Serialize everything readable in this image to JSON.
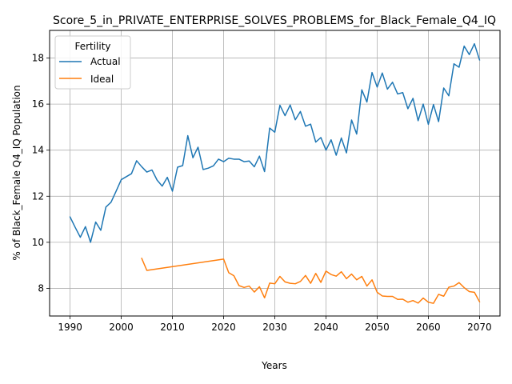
{
  "chart_data": {
    "type": "line",
    "title": "Score_5_in_PRIVATE_ENTERPRISE_SOLVES_PROBLEMS_for_Black_Female_Q4_IQ",
    "xlabel": "Years",
    "ylabel": "% of Black_Female Q4_IQ Population",
    "xlim": [
      1986.0,
      2074.0
    ],
    "ylim": [
      6.8,
      19.2
    ],
    "xticks": [
      1990,
      2000,
      2010,
      2020,
      2030,
      2040,
      2050,
      2060,
      2070
    ],
    "yticks": [
      8,
      10,
      12,
      14,
      16,
      18
    ],
    "grid": true,
    "legend": {
      "title": "Fertility",
      "placement": "top-left"
    },
    "series": [
      {
        "name": "Actual",
        "color": "#1f77b4",
        "x": [
          1990,
          1991,
          1992,
          1993,
          1994,
          1995,
          1996,
          1997,
          1998,
          1999,
          2000,
          2002,
          2003,
          2004,
          2005,
          2006,
          2007,
          2008,
          2009,
          2010,
          2011,
          2012,
          2013,
          2014,
          2015,
          2016,
          2017,
          2018,
          2019,
          2020,
          2021,
          2022,
          2023,
          2024,
          2025,
          2026,
          2027,
          2028,
          2029,
          2030,
          2031,
          2032,
          2033,
          2034,
          2035,
          2036,
          2037,
          2038,
          2039,
          2040,
          2041,
          2042,
          2043,
          2044,
          2045,
          2046,
          2047,
          2048,
          2049,
          2050,
          2051,
          2052,
          2053,
          2054,
          2055,
          2056,
          2057,
          2058,
          2059,
          2060,
          2061,
          2062,
          2063,
          2064,
          2065,
          2066,
          2067,
          2068,
          2069,
          2070
        ],
        "values": [
          11.1,
          10.65,
          10.22,
          10.68,
          10.0,
          10.88,
          10.52,
          11.53,
          11.74,
          12.22,
          12.72,
          12.98,
          13.54,
          13.28,
          13.05,
          13.14,
          12.7,
          12.44,
          12.82,
          12.22,
          13.26,
          13.33,
          14.63,
          13.67,
          14.13,
          13.16,
          13.22,
          13.32,
          13.61,
          13.5,
          13.65,
          13.61,
          13.61,
          13.5,
          13.53,
          13.28,
          13.74,
          13.07,
          14.96,
          14.78,
          15.95,
          15.5,
          15.96,
          15.32,
          15.68,
          15.04,
          15.13,
          14.35,
          14.55,
          14.0,
          14.45,
          13.78,
          14.53,
          13.88,
          15.31,
          14.7,
          16.62,
          16.09,
          17.37,
          16.74,
          17.35,
          16.65,
          16.95,
          16.44,
          16.5,
          15.8,
          16.25,
          15.28,
          16.0,
          15.12,
          15.98,
          15.24,
          16.7,
          16.36,
          17.75,
          17.6,
          18.52,
          18.15,
          18.62,
          17.92
        ]
      },
      {
        "name": "Ideal",
        "color": "#ff7f0e",
        "x": [
          2004,
          2005,
          2020,
          2021,
          2022,
          2023,
          2024,
          2025,
          2026,
          2027,
          2028,
          2029,
          2030,
          2031,
          2032,
          2033,
          2034,
          2035,
          2036,
          2037,
          2038,
          2039,
          2040,
          2041,
          2042,
          2043,
          2044,
          2045,
          2046,
          2047,
          2048,
          2049,
          2050,
          2051,
          2052,
          2053,
          2054,
          2055,
          2056,
          2057,
          2058,
          2059,
          2060,
          2061,
          2062,
          2063,
          2064,
          2065,
          2066,
          2067,
          2068,
          2069,
          2070
        ],
        "values": [
          9.3,
          8.78,
          9.27,
          8.68,
          8.55,
          8.12,
          8.04,
          8.1,
          7.84,
          8.07,
          7.59,
          8.23,
          8.2,
          8.52,
          8.28,
          8.22,
          8.2,
          8.3,
          8.56,
          8.22,
          8.65,
          8.26,
          8.75,
          8.6,
          8.53,
          8.72,
          8.42,
          8.62,
          8.37,
          8.52,
          8.1,
          8.37,
          7.83,
          7.67,
          7.65,
          7.65,
          7.52,
          7.53,
          7.4,
          7.47,
          7.36,
          7.58,
          7.4,
          7.35,
          7.74,
          7.66,
          8.05,
          8.1,
          8.25,
          8.03,
          7.86,
          7.83,
          7.42
        ]
      }
    ]
  }
}
